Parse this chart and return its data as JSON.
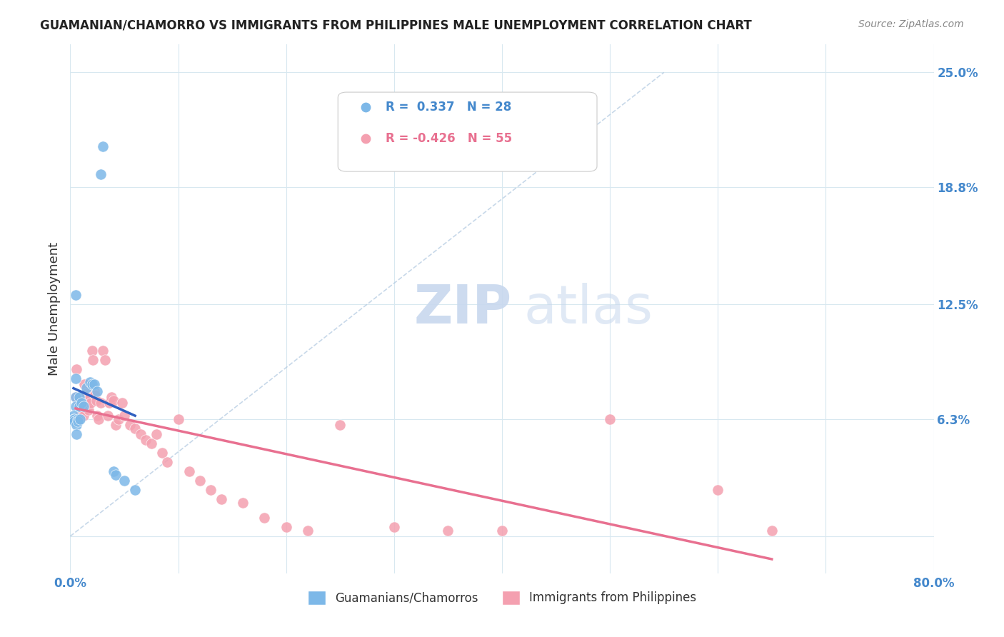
{
  "title": "GUAMANIAN/CHAMORRO VS IMMIGRANTS FROM PHILIPPINES MALE UNEMPLOYMENT CORRELATION CHART",
  "source": "Source: ZipAtlas.com",
  "ylabel": "Male Unemployment",
  "y_ticks": [
    0.0,
    0.063,
    0.125,
    0.188,
    0.25
  ],
  "y_tick_labels": [
    "",
    "6.3%",
    "12.5%",
    "18.8%",
    "25.0%"
  ],
  "x_ticks": [
    0.0,
    0.1,
    0.2,
    0.3,
    0.4,
    0.5,
    0.6,
    0.7,
    0.8
  ],
  "xmin": 0.0,
  "xmax": 0.8,
  "ymin": -0.02,
  "ymax": 0.265,
  "blue_R": 0.337,
  "blue_N": 28,
  "pink_R": -0.426,
  "pink_N": 55,
  "blue_color": "#7db8e8",
  "pink_color": "#f4a0b0",
  "blue_trend_color": "#3060c0",
  "pink_trend_color": "#e87090",
  "ref_line_color": "#b0c8e0",
  "blue_scatter_x": [
    0.03,
    0.028,
    0.005,
    0.005,
    0.005,
    0.005,
    0.008,
    0.008,
    0.01,
    0.012,
    0.015,
    0.018,
    0.02,
    0.022,
    0.025,
    0.003,
    0.003,
    0.004,
    0.004,
    0.006,
    0.006,
    0.007,
    0.007,
    0.009,
    0.04,
    0.042,
    0.05,
    0.06
  ],
  "blue_scatter_y": [
    0.21,
    0.195,
    0.13,
    0.085,
    0.075,
    0.07,
    0.075,
    0.07,
    0.072,
    0.07,
    0.08,
    0.083,
    0.082,
    0.082,
    0.078,
    0.065,
    0.063,
    0.063,
    0.062,
    0.06,
    0.055,
    0.063,
    0.062,
    0.063,
    0.035,
    0.033,
    0.03,
    0.025
  ],
  "pink_scatter_x": [
    0.005,
    0.006,
    0.007,
    0.008,
    0.01,
    0.011,
    0.012,
    0.013,
    0.015,
    0.016,
    0.017,
    0.018,
    0.019,
    0.02,
    0.021,
    0.022,
    0.023,
    0.024,
    0.025,
    0.026,
    0.028,
    0.03,
    0.032,
    0.035,
    0.036,
    0.038,
    0.04,
    0.042,
    0.045,
    0.048,
    0.05,
    0.055,
    0.06,
    0.065,
    0.07,
    0.075,
    0.08,
    0.085,
    0.09,
    0.1,
    0.11,
    0.12,
    0.13,
    0.14,
    0.16,
    0.18,
    0.2,
    0.22,
    0.25,
    0.3,
    0.35,
    0.4,
    0.5,
    0.6,
    0.65
  ],
  "pink_scatter_y": [
    0.075,
    0.09,
    0.073,
    0.065,
    0.072,
    0.068,
    0.065,
    0.082,
    0.077,
    0.07,
    0.068,
    0.075,
    0.072,
    0.1,
    0.095,
    0.078,
    0.076,
    0.073,
    0.065,
    0.063,
    0.072,
    0.1,
    0.095,
    0.065,
    0.072,
    0.075,
    0.073,
    0.06,
    0.063,
    0.072,
    0.065,
    0.06,
    0.058,
    0.055,
    0.052,
    0.05,
    0.055,
    0.045,
    0.04,
    0.063,
    0.035,
    0.03,
    0.025,
    0.02,
    0.018,
    0.01,
    0.005,
    0.003,
    0.06,
    0.005,
    0.003,
    0.003,
    0.063,
    0.025,
    0.003
  ],
  "background_color": "#ffffff",
  "grid_color": "#d8e8f0",
  "tick_label_color": "#4488cc"
}
